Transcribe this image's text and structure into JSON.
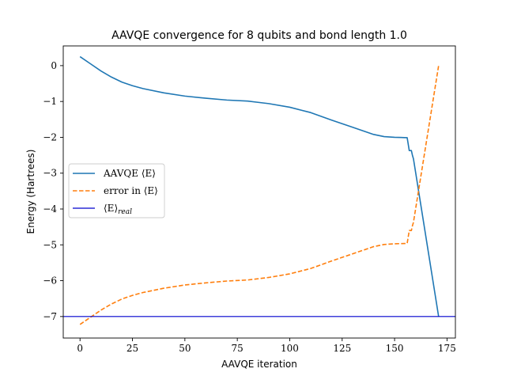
{
  "chart_data": {
    "type": "line",
    "title": "AAVQE convergence for 8 qubits and bond length 1.0",
    "xlabel": "AAVQE iteration",
    "ylabel": "Energy (Hartrees)",
    "xlim": [
      -8,
      179
    ],
    "ylim": [
      -7.6,
      0.55
    ],
    "xticks": [
      0,
      25,
      50,
      75,
      100,
      125,
      150,
      175
    ],
    "yticks": [
      0,
      -1,
      -2,
      -3,
      -4,
      -5,
      -6,
      -7
    ],
    "xtick_labels": [
      "0",
      "25",
      "50",
      "75",
      "100",
      "125",
      "150",
      "175"
    ],
    "ytick_labels": [
      "0",
      "−1",
      "−2",
      "−3",
      "−4",
      "−5",
      "−6",
      "−7"
    ],
    "grid": false,
    "legend_position": "center-left",
    "series": [
      {
        "name": "AAVQE ⟨E⟩",
        "color": "#1f77b4",
        "style": "solid",
        "x": [
          0,
          5,
          10,
          15,
          20,
          25,
          30,
          40,
          50,
          60,
          70,
          80,
          90,
          100,
          110,
          120,
          130,
          140,
          145,
          150,
          156,
          157,
          158,
          158.5,
          159,
          171
        ],
        "y": [
          0.25,
          0.05,
          -0.15,
          -0.32,
          -0.46,
          -0.56,
          -0.64,
          -0.76,
          -0.85,
          -0.91,
          -0.96,
          -0.99,
          -1.06,
          -1.16,
          -1.31,
          -1.52,
          -1.72,
          -1.92,
          -1.98,
          -2.0,
          -2.01,
          -2.37,
          -2.37,
          -2.5,
          -2.6,
          -7.0
        ]
      },
      {
        "name": "error in ⟨E⟩",
        "color": "#ff7f0e",
        "style": "dashed",
        "x": [
          0,
          5,
          10,
          15,
          20,
          25,
          30,
          40,
          50,
          60,
          70,
          80,
          90,
          100,
          110,
          120,
          130,
          140,
          145,
          150,
          156,
          157,
          158,
          158.5,
          159,
          171
        ],
        "y": [
          -7.22,
          -7.02,
          -6.82,
          -6.65,
          -6.51,
          -6.41,
          -6.33,
          -6.21,
          -6.12,
          -6.06,
          -6.01,
          -5.98,
          -5.91,
          -5.81,
          -5.66,
          -5.45,
          -5.25,
          -5.05,
          -4.99,
          -4.97,
          -4.96,
          -4.6,
          -4.6,
          -4.47,
          -4.37,
          0.0
        ]
      },
      {
        "name": "⟨E⟩real",
        "color": "#0000cd",
        "style": "solid",
        "x": [
          -8,
          179
        ],
        "y": [
          -7.0,
          -7.0
        ]
      }
    ]
  },
  "legend": [
    {
      "label": "AAVQE ⟨E⟩"
    },
    {
      "label": "error in ⟨E⟩"
    },
    {
      "label": "⟨E⟩",
      "sub": "real"
    }
  ]
}
